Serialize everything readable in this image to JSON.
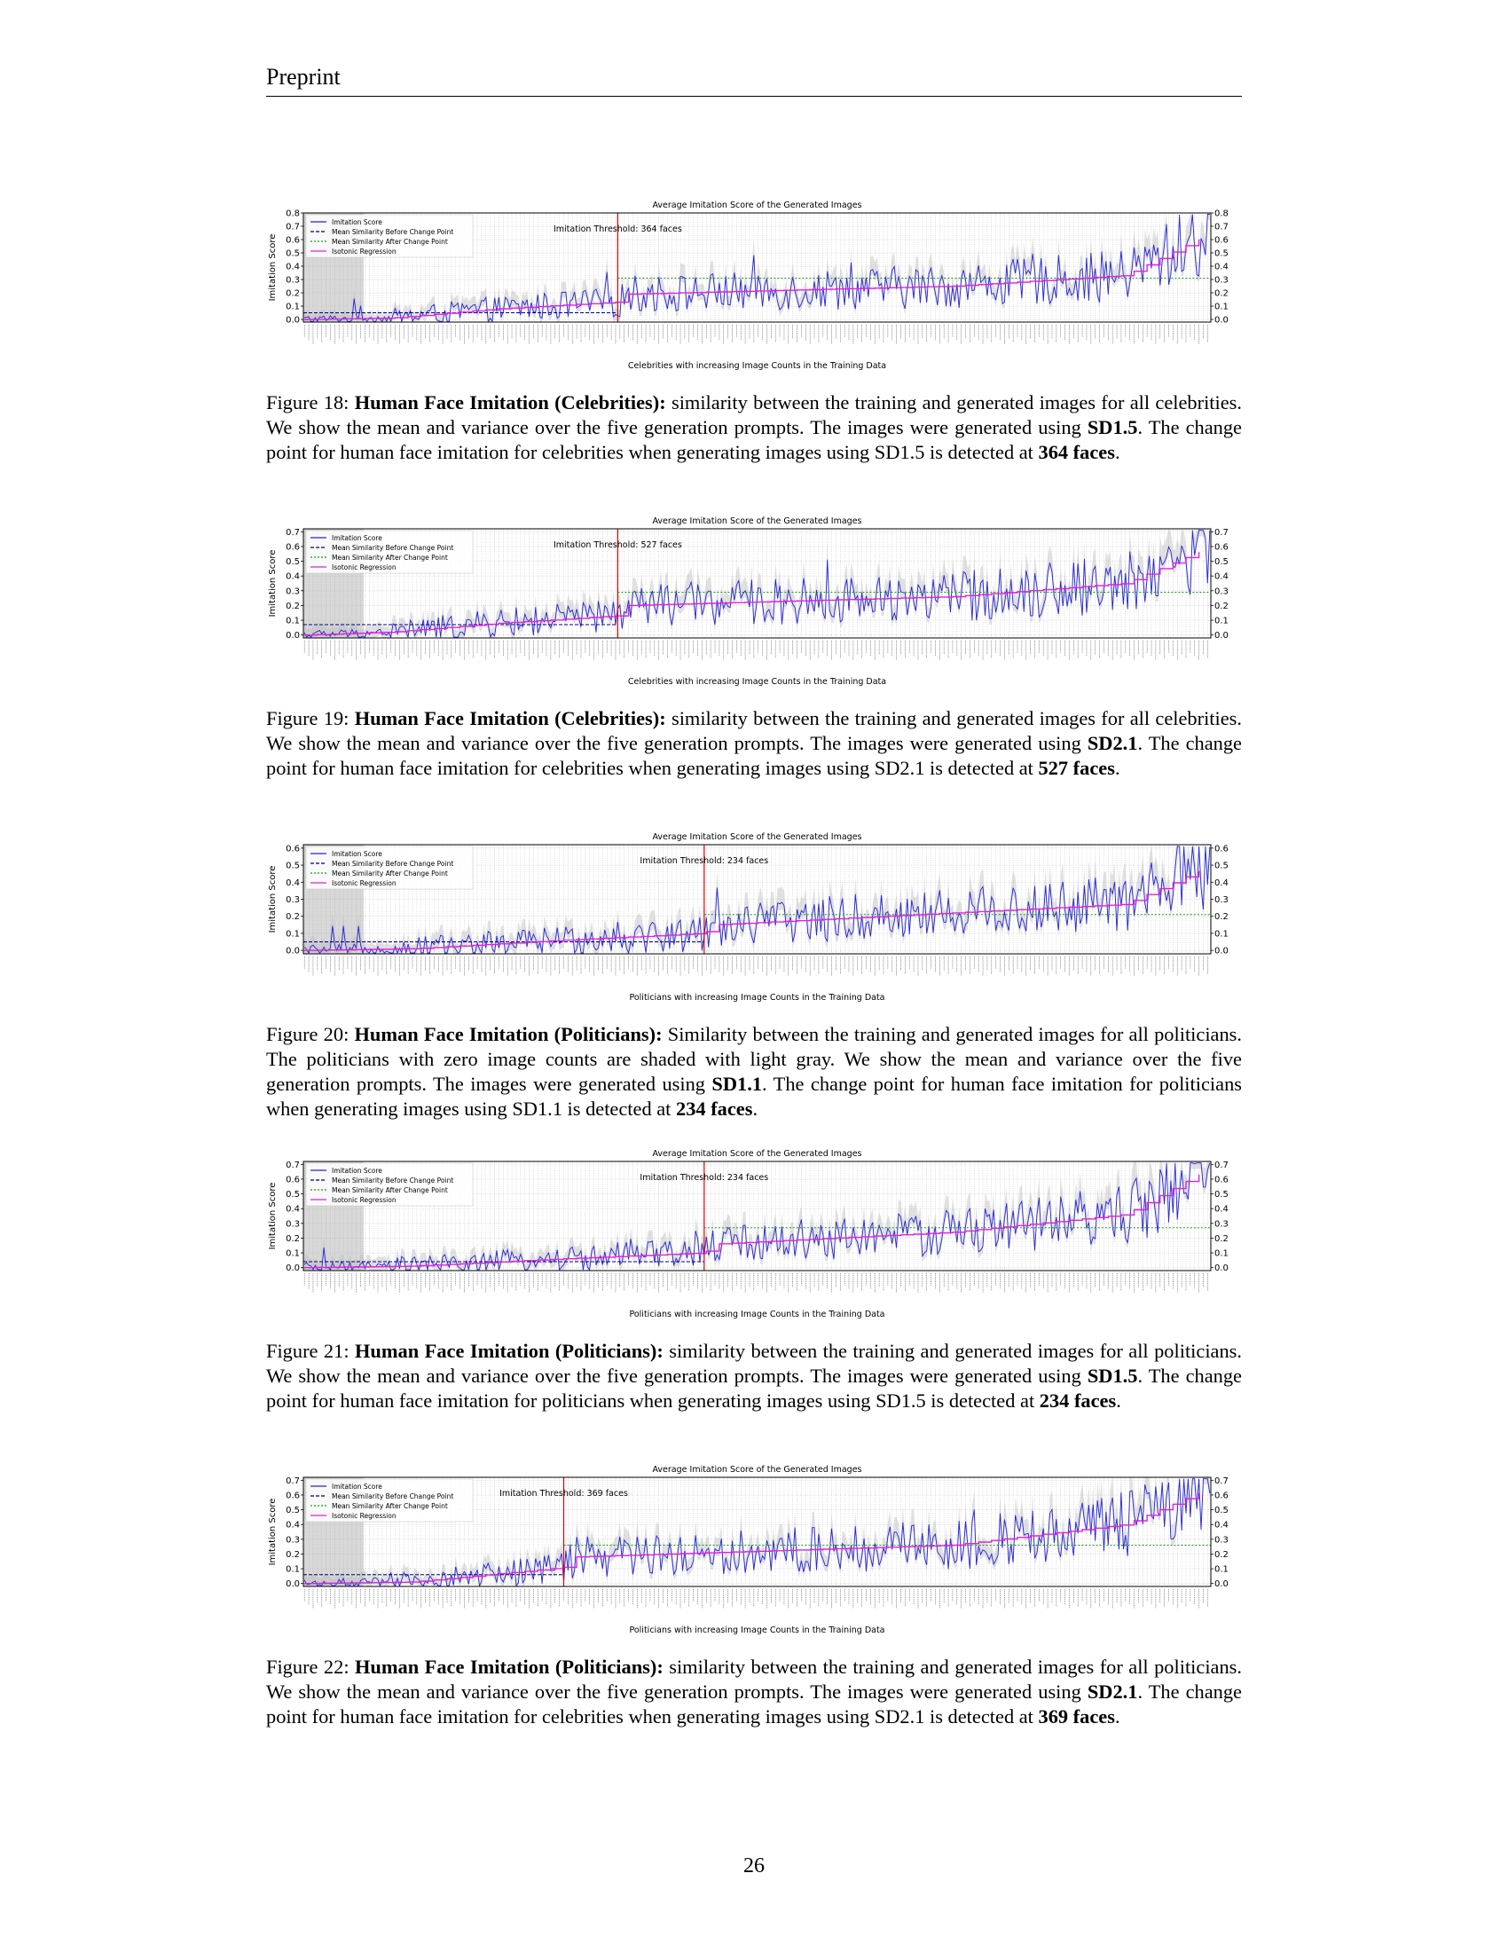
{
  "header": "Preprint",
  "page_number": "26",
  "figures": [
    {
      "caption": {
        "label": "Figure 18:",
        "heading": "Human Face Imitation (Celebrities):",
        "body1": " similarity between the training and generated images for all celebrities. We show the mean and variance over the five generation prompts. The images were generated using ",
        "model": "SD1.5",
        "body2": ". The change point for human face imitation for celebrities when generating images using SD1.5 is detected at ",
        "faces": "364 faces",
        "end": "."
      },
      "chart_data": {
        "type": "line",
        "title": "Average Imitation Score of the Generated Images",
        "xlabel": "Celebrities with increasing Image Counts in the Training Data",
        "ylabel": "Imitation Score",
        "ylim": [
          -0.02,
          0.8
        ],
        "yticks": [
          "0.0",
          "0.1",
          "0.2",
          "0.3",
          "0.4",
          "0.5",
          "0.6",
          "0.7",
          "0.8"
        ],
        "annotation": "Imitation Threshold: 364 faces",
        "legend": [
          "Imitation Score",
          "Mean Similarity Before Change Point",
          "Mean Similarity After Change Point",
          "Isotonic Regression"
        ],
        "legend_position": "top-left",
        "grid": true,
        "zero_count_shaded": true,
        "n_points": 420,
        "change_index": 145,
        "mean_before": 0.05,
        "mean_after": 0.31,
        "isotonic_profile": [
          [
            0,
            0.0
          ],
          [
            40,
            0.01
          ],
          [
            90,
            0.08
          ],
          [
            145,
            0.13
          ],
          [
            150,
            0.19
          ],
          [
            300,
            0.25
          ],
          [
            380,
            0.33
          ],
          [
            420,
            0.65
          ]
        ],
        "series": [
          {
            "name": "Imitation Score",
            "color": "#1f1fd6"
          }
        ]
      }
    },
    {
      "caption": {
        "label": "Figure 19:",
        "heading": "Human Face Imitation (Celebrities):",
        "body1": " similarity between the training and generated images for all celebrities. We show the mean and variance over the five generation prompts. The images were generated using ",
        "model": "SD2.1",
        "body2": ". The change point for human face imitation for celebrities when generating images using SD2.1 is detected at ",
        "faces": "527 faces",
        "end": "."
      },
      "chart_data": {
        "type": "line",
        "title": "Average Imitation Score of the Generated Images",
        "xlabel": "Celebrities with increasing Image Counts in the Training Data",
        "ylabel": "Imitation Score",
        "ylim": [
          -0.02,
          0.72
        ],
        "yticks": [
          "0.0",
          "0.1",
          "0.2",
          "0.3",
          "0.4",
          "0.5",
          "0.6",
          "0.7"
        ],
        "annotation": "Imitation Threshold: 527 faces",
        "legend": [
          "Imitation Score",
          "Mean Similarity Before Change Point",
          "Mean Similarity After Change Point",
          "Isotonic Regression"
        ],
        "legend_position": "top-left",
        "grid": true,
        "zero_count_shaded": true,
        "n_points": 420,
        "change_index": 145,
        "mean_before": 0.07,
        "mean_after": 0.29,
        "isotonic_profile": [
          [
            0,
            0.0
          ],
          [
            40,
            0.02
          ],
          [
            90,
            0.08
          ],
          [
            145,
            0.13
          ],
          [
            150,
            0.2
          ],
          [
            300,
            0.26
          ],
          [
            380,
            0.35
          ],
          [
            420,
            0.6
          ]
        ],
        "series": [
          {
            "name": "Imitation Score",
            "color": "#1f1fd6"
          }
        ]
      }
    },
    {
      "caption": {
        "label": "Figure 20:",
        "heading": "Human Face Imitation (Politicians):",
        "body1": " Similarity between the training and generated images for all politicians. The politicians with zero image counts are shaded with light gray. We show the mean and variance over the five generation prompts. The images were generated using ",
        "model": "SD1.1",
        "body2": ". The change point for human face imitation for politicians when generating images using SD1.1 is detected at ",
        "faces": "234 faces",
        "end": "."
      },
      "chart_data": {
        "type": "line",
        "title": "Average Imitation Score of the Generated Images",
        "xlabel": "Politicians with increasing Image Counts in the Training Data",
        "ylabel": "Imitation Score",
        "ylim": [
          -0.02,
          0.62
        ],
        "yticks": [
          "0.0",
          "0.1",
          "0.2",
          "0.3",
          "0.4",
          "0.5",
          "0.6"
        ],
        "annotation": "Imitation Threshold: 234 faces",
        "legend": [
          "Imitation Score",
          "Mean Similarity Before Change Point",
          "Mean Similarity After Change Point",
          "Isotonic Regression"
        ],
        "legend_position": "top-left",
        "grid": true,
        "zero_count_shaded": true,
        "n_points": 420,
        "change_index": 185,
        "mean_before": 0.05,
        "mean_after": 0.21,
        "isotonic_profile": [
          [
            0,
            0.0
          ],
          [
            50,
            0.01
          ],
          [
            120,
            0.06
          ],
          [
            185,
            0.1
          ],
          [
            190,
            0.15
          ],
          [
            300,
            0.22
          ],
          [
            380,
            0.27
          ],
          [
            420,
            0.5
          ]
        ],
        "series": [
          {
            "name": "Imitation Score",
            "color": "#1f1fd6"
          }
        ]
      }
    },
    {
      "caption": {
        "label": "Figure 21:",
        "heading": "Human Face Imitation (Politicians):",
        "body1": " similarity between the training and generated images for all politicians. We show the mean and variance over the five generation prompts. The images were generated using ",
        "model": "SD1.5",
        "body2": ". The change point for human face imitation for politicians when generating images using SD1.5 is detected at ",
        "faces": "234 faces",
        "end": "."
      },
      "chart_data": {
        "type": "line",
        "title": "Average Imitation Score of the Generated Images",
        "xlabel": "Politicians with increasing Image Counts in the Training Data",
        "ylabel": "Imitation Score",
        "ylim": [
          -0.02,
          0.72
        ],
        "yticks": [
          "0.0",
          "0.1",
          "0.2",
          "0.3",
          "0.4",
          "0.5",
          "0.6",
          "0.7"
        ],
        "annotation": "Imitation Threshold: 234 faces",
        "legend": [
          "Imitation Score",
          "Mean Similarity Before Change Point",
          "Mean Similarity After Change Point",
          "Isotonic Regression"
        ],
        "legend_position": "top-left",
        "grid": true,
        "zero_count_shaded": true,
        "n_points": 420,
        "change_index": 185,
        "mean_before": 0.04,
        "mean_after": 0.27,
        "isotonic_profile": [
          [
            0,
            0.0
          ],
          [
            50,
            0.01
          ],
          [
            120,
            0.06
          ],
          [
            185,
            0.1
          ],
          [
            190,
            0.16
          ],
          [
            300,
            0.24
          ],
          [
            380,
            0.36
          ],
          [
            420,
            0.68
          ]
        ],
        "series": [
          {
            "name": "Imitation Score",
            "color": "#1f1fd6"
          }
        ]
      }
    },
    {
      "caption": {
        "label": "Figure 22:",
        "heading": "Human Face Imitation (Politicians):",
        "body1": " similarity between the training and generated images for all politicians. We show the mean and variance over the five generation prompts. The images were generated using ",
        "model": "SD2.1",
        "body2": ". The change point for human face imitation for celebrities when generating images using SD2.1 is detected at ",
        "faces": "369 faces",
        "end": "."
      },
      "chart_data": {
        "type": "line",
        "title": "Average Imitation Score of the Generated Images",
        "xlabel": "Politicians with increasing Image Counts in the Training Data",
        "ylabel": "Imitation Score",
        "ylim": [
          -0.02,
          0.72
        ],
        "yticks": [
          "0.0",
          "0.1",
          "0.2",
          "0.3",
          "0.4",
          "0.5",
          "0.6",
          "0.7"
        ],
        "annotation": "Imitation Threshold: 369 faces",
        "legend": [
          "Imitation Score",
          "Mean Similarity Before Change Point",
          "Mean Similarity After Change Point",
          "Isotonic Regression"
        ],
        "legend_position": "top-left",
        "grid": true,
        "zero_count_shaded": true,
        "n_points": 420,
        "change_index": 120,
        "mean_before": 0.06,
        "mean_after": 0.26,
        "isotonic_profile": [
          [
            0,
            0.0
          ],
          [
            50,
            0.01
          ],
          [
            100,
            0.08
          ],
          [
            120,
            0.11
          ],
          [
            125,
            0.18
          ],
          [
            300,
            0.26
          ],
          [
            380,
            0.4
          ],
          [
            420,
            0.65
          ]
        ],
        "series": [
          {
            "name": "Imitation Score",
            "color": "#1f1fd6"
          }
        ]
      }
    }
  ]
}
